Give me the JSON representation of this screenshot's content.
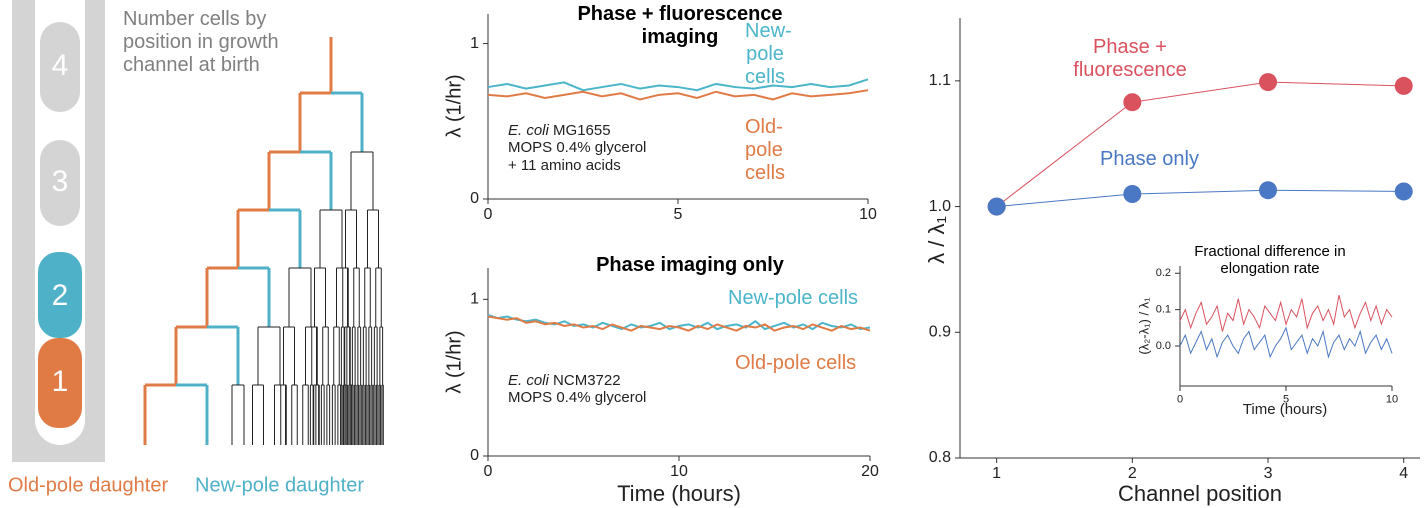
{
  "diagram": {
    "note": "Number cells by position in growth channel at birth",
    "cells": [
      "4",
      "3",
      "2",
      "1"
    ],
    "legend": [
      "Old-pole daughter",
      "New-pole daughter"
    ]
  },
  "chart_data": [
    {
      "type": "line",
      "title": "Phase + fluorescence imaging",
      "ylabel": "λ (1/hr)",
      "species": "E. coli",
      "strain": "MG1655",
      "medium": [
        "MOPS 0.4% glycerol",
        "+ 11 amino acids"
      ],
      "xlim": [
        0,
        10
      ],
      "xticks": [
        0,
        5,
        10
      ],
      "ylim": [
        0,
        1.19
      ],
      "yticks": [
        0,
        1
      ],
      "x": [
        0,
        0.5,
        1,
        1.5,
        2,
        2.5,
        3,
        3.5,
        4,
        4.5,
        5,
        5.5,
        6,
        6.5,
        7,
        7.5,
        8,
        8.5,
        9,
        9.5,
        10
      ],
      "series": [
        {
          "name": "New-pole cells",
          "color": "#4bb5c9",
          "values": [
            0.72,
            0.74,
            0.71,
            0.73,
            0.75,
            0.7,
            0.72,
            0.74,
            0.71,
            0.73,
            0.72,
            0.7,
            0.74,
            0.72,
            0.71,
            0.73,
            0.72,
            0.74,
            0.72,
            0.73,
            0.77
          ]
        },
        {
          "name": "Old-pole cells",
          "color": "#e07b46",
          "values": [
            0.67,
            0.66,
            0.68,
            0.65,
            0.67,
            0.69,
            0.66,
            0.68,
            0.64,
            0.67,
            0.68,
            0.65,
            0.69,
            0.66,
            0.67,
            0.64,
            0.68,
            0.66,
            0.67,
            0.68,
            0.7
          ]
        }
      ]
    },
    {
      "type": "line",
      "title": "Phase imaging only",
      "ylabel": "λ (1/hr)",
      "xlabel": "Time (hours)",
      "species": "E. coli",
      "strain": "NCM3722",
      "medium": [
        "MOPS 0.4% glycerol"
      ],
      "xlim": [
        0,
        20
      ],
      "xticks": [
        0,
        10,
        20
      ],
      "ylim": [
        0,
        1.2
      ],
      "yticks": [
        0,
        1
      ],
      "x": [
        0,
        0.5,
        1,
        1.5,
        2,
        2.5,
        3,
        3.5,
        4,
        4.5,
        5,
        5.5,
        6,
        6.5,
        7,
        7.5,
        8,
        8.5,
        9,
        9.5,
        10,
        10.5,
        11,
        11.5,
        12,
        12.5,
        13,
        13.5,
        14,
        14.5,
        15,
        15.5,
        16,
        16.5,
        17,
        17.5,
        18,
        18.5,
        19,
        19.5,
        20
      ],
      "series": [
        {
          "name": "New-pole cells",
          "color": "#4bb5c9",
          "values": [
            0.9,
            0.88,
            0.89,
            0.87,
            0.86,
            0.87,
            0.85,
            0.84,
            0.86,
            0.83,
            0.84,
            0.82,
            0.85,
            0.83,
            0.81,
            0.84,
            0.82,
            0.83,
            0.85,
            0.81,
            0.83,
            0.84,
            0.82,
            0.85,
            0.81,
            0.83,
            0.84,
            0.82,
            0.86,
            0.81,
            0.83,
            0.85,
            0.82,
            0.84,
            0.81,
            0.85,
            0.83,
            0.82,
            0.84,
            0.81,
            0.82
          ]
        },
        {
          "name": "Old-pole cells",
          "color": "#e07b46",
          "values": [
            0.89,
            0.88,
            0.87,
            0.88,
            0.85,
            0.86,
            0.84,
            0.85,
            0.83,
            0.84,
            0.82,
            0.83,
            0.81,
            0.84,
            0.82,
            0.8,
            0.83,
            0.82,
            0.81,
            0.83,
            0.82,
            0.8,
            0.83,
            0.81,
            0.84,
            0.82,
            0.8,
            0.83,
            0.82,
            0.84,
            0.8,
            0.82,
            0.83,
            0.81,
            0.84,
            0.82,
            0.8,
            0.83,
            0.81,
            0.82,
            0.8
          ]
        }
      ]
    },
    {
      "type": "line",
      "markers": true,
      "ylabel": "λ / λ₁",
      "xlabel": "Channel position",
      "xlim": [
        0.73,
        4.12
      ],
      "xticks": [
        1,
        2,
        3,
        4
      ],
      "ylim": [
        0.8,
        1.15
      ],
      "yticks": [
        0.8,
        0.9,
        {
          "value": 1,
          "label": "1.0"
        },
        1.1
      ],
      "x": [
        1,
        2,
        3,
        4
      ],
      "series": [
        {
          "name": "Phase + fluorescence",
          "color": "#d9525e",
          "values": [
            1.0,
            1.083,
            1.099,
            1.096
          ]
        },
        {
          "name": "Phase only",
          "color": "#4a78c4",
          "values": [
            1.0,
            1.01,
            1.013,
            1.012
          ]
        }
      ]
    },
    {
      "type": "line",
      "title": "Fractional difference in elongation rate",
      "ylabel": "(λ₂-λ₁) / λ₁",
      "xlabel": "Time (hours)",
      "xlim": [
        0,
        10
      ],
      "xticks": [
        0,
        5,
        10
      ],
      "ylim": [
        -0.11,
        0.22
      ],
      "yticks": [
        {
          "value": 0,
          "label": "0.0"
        },
        0.1,
        0.2
      ],
      "x": [
        0,
        0.25,
        0.5,
        0.75,
        1,
        1.25,
        1.5,
        1.75,
        2,
        2.25,
        2.5,
        2.75,
        3,
        3.25,
        3.5,
        3.75,
        4,
        4.25,
        4.5,
        4.75,
        5,
        5.25,
        5.5,
        5.75,
        6,
        6.25,
        6.5,
        6.75,
        7,
        7.25,
        7.5,
        7.75,
        8,
        8.25,
        8.5,
        8.75,
        9,
        9.25,
        9.5,
        9.75,
        10
      ],
      "series": [
        {
          "color": "#d9525e",
          "values": [
            0.07,
            0.1,
            0.05,
            0.09,
            0.12,
            0.06,
            0.08,
            0.11,
            0.04,
            0.09,
            0.07,
            0.13,
            0.06,
            0.1,
            0.08,
            0.05,
            0.11,
            0.09,
            0.07,
            0.12,
            0.06,
            0.1,
            0.08,
            0.13,
            0.05,
            0.09,
            0.11,
            0.07,
            0.1,
            0.06,
            0.14,
            0.08,
            0.1,
            0.05,
            0.09,
            0.12,
            0.07,
            0.11,
            0.06,
            0.1,
            0.08
          ]
        },
        {
          "color": "#4a78c4",
          "values": [
            0.0,
            0.03,
            -0.02,
            0.01,
            0.04,
            -0.01,
            0.02,
            -0.03,
            0.01,
            0.03,
            0.0,
            -0.02,
            0.02,
            0.04,
            -0.01,
            0.01,
            0.03,
            -0.03,
            0.0,
            0.02,
            0.05,
            -0.01,
            0.01,
            0.03,
            -0.02,
            0.02,
            0.0,
            0.04,
            -0.03,
            0.01,
            0.03,
            -0.01,
            0.02,
            0.0,
            0.04,
            -0.02,
            0.01,
            0.03,
            -0.01,
            0.02,
            -0.02
          ]
        }
      ]
    }
  ]
}
